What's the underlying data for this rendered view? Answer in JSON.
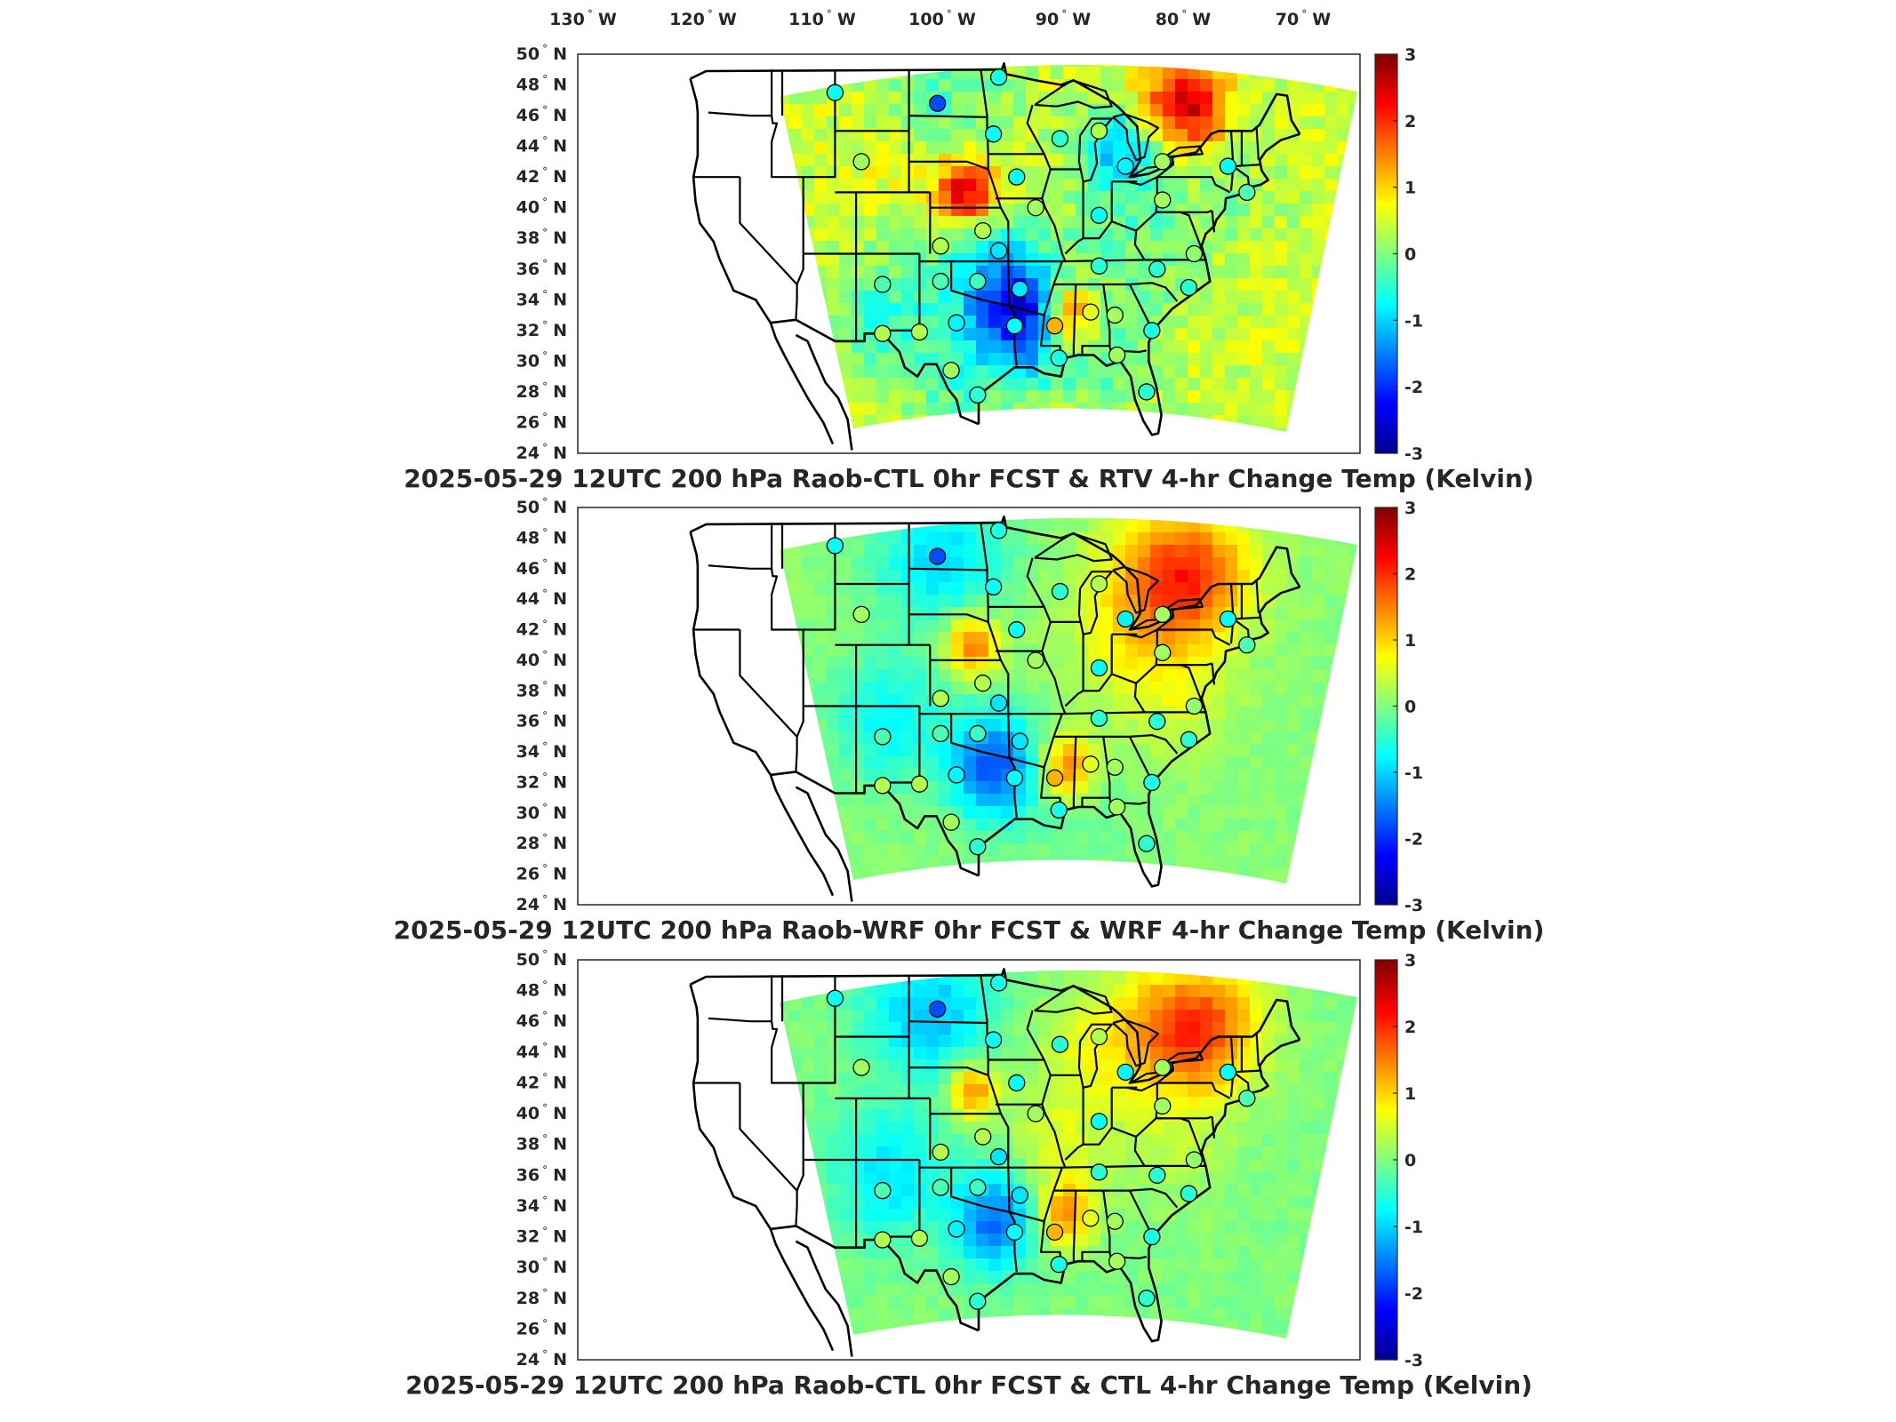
{
  "longitude_labels": [
    "130",
    "120",
    "110",
    "100",
    "90",
    "80",
    "70"
  ],
  "longitude_suffix": "W",
  "latitude_labels": [
    "50",
    "48",
    "46",
    "44",
    "42",
    "40",
    "38",
    "36",
    "34",
    "32",
    "30",
    "28",
    "26",
    "24"
  ],
  "latitude_suffix": "N",
  "colorbar": {
    "ticks": [
      "3",
      "2",
      "1",
      "0",
      "-1",
      "-2",
      "-3"
    ],
    "range": [
      -3,
      3
    ],
    "colormap": "jet"
  },
  "colors": {
    "frame": "#262626",
    "state_lines": "#000000",
    "no_data": "#ffffff"
  },
  "panels": [
    {
      "title": "2025-05-29 12UTC 200 hPa Raob-CTL 0hr FCST & RTV 4-hr Change Temp (Kelvin)",
      "anomalies": [
        {
          "lon": -98.5,
          "lat": 41.0,
          "value": 2.2,
          "spread": 1.5
        },
        {
          "lon": -89.0,
          "lat": 33.0,
          "value": 2.0,
          "spread": 1.5
        },
        {
          "lon": -78.0,
          "lat": 46.5,
          "value": 2.2,
          "spread": 2.0
        },
        {
          "lon": -93.0,
          "lat": 32.5,
          "value": -2.2,
          "spread": 2.5
        },
        {
          "lon": -96.0,
          "lat": 35.5,
          "value": -1.4,
          "spread": 3.0
        },
        {
          "lon": -84.0,
          "lat": 44.0,
          "value": -1.5,
          "spread": 2.0
        },
        {
          "lon": -82.0,
          "lat": 38.0,
          "value": -0.6,
          "spread": 3.5
        },
        {
          "lon": -106.0,
          "lat": 33.0,
          "value": -0.9,
          "spread": 3.0
        },
        {
          "lon": -99.0,
          "lat": 28.5,
          "value": -0.8,
          "spread": 2.5
        },
        {
          "lon": -86.0,
          "lat": 30.0,
          "value": -0.6,
          "spread": 3.0
        },
        {
          "lon": -101.0,
          "lat": 47.0,
          "value": -0.8,
          "spread": 3.0
        },
        {
          "lon": -104.0,
          "lat": 44.0,
          "value": 0.3,
          "spread": 3.0
        },
        {
          "lon": -73.0,
          "lat": 42.0,
          "value": -0.3,
          "spread": 3.0
        }
      ],
      "base_value": 0.45,
      "noise_amplitude": 0.35,
      "stations": [
        {
          "lon": -111.0,
          "lat": 47.5,
          "value": -0.7
        },
        {
          "lon": -101.3,
          "lat": 46.8,
          "value": -1.8
        },
        {
          "lon": -95.5,
          "lat": 48.5,
          "value": -0.6
        },
        {
          "lon": -108.5,
          "lat": 43.0,
          "value": 0.2
        },
        {
          "lon": -96.0,
          "lat": 44.8,
          "value": -0.7
        },
        {
          "lon": -93.8,
          "lat": 42.0,
          "value": -0.7
        },
        {
          "lon": -89.7,
          "lat": 44.5,
          "value": -0.5
        },
        {
          "lon": -86.0,
          "lat": 45.0,
          "value": 0.3
        },
        {
          "lon": -83.5,
          "lat": 42.7,
          "value": -0.8
        },
        {
          "lon": -80.0,
          "lat": 43.0,
          "value": 0.2
        },
        {
          "lon": -73.8,
          "lat": 42.7,
          "value": -0.7
        },
        {
          "lon": -72.0,
          "lat": 41.0,
          "value": -0.3
        },
        {
          "lon": -92.0,
          "lat": 40.0,
          "value": 0.2
        },
        {
          "lon": -86.0,
          "lat": 39.5,
          "value": -0.7
        },
        {
          "lon": -80.0,
          "lat": 40.5,
          "value": 0.2
        },
        {
          "lon": -97.0,
          "lat": 38.5,
          "value": 0.3
        },
        {
          "lon": -101.0,
          "lat": 37.5,
          "value": 0.3
        },
        {
          "lon": -95.5,
          "lat": 37.2,
          "value": -0.9
        },
        {
          "lon": -86.0,
          "lat": 36.2,
          "value": -0.5
        },
        {
          "lon": -80.5,
          "lat": 36.0,
          "value": -0.5
        },
        {
          "lon": -77.0,
          "lat": 37.0,
          "value": 0.1
        },
        {
          "lon": -106.5,
          "lat": 35.0,
          "value": -0.3
        },
        {
          "lon": -101.0,
          "lat": 35.2,
          "value": -0.3
        },
        {
          "lon": -97.5,
          "lat": 35.2,
          "value": -0.4
        },
        {
          "lon": -93.5,
          "lat": 34.7,
          "value": -0.9
        },
        {
          "lon": -99.5,
          "lat": 32.5,
          "value": -0.8
        },
        {
          "lon": -94.0,
          "lat": 32.3,
          "value": -0.7
        },
        {
          "lon": -90.2,
          "lat": 32.3,
          "value": 1.2
        },
        {
          "lon": -86.8,
          "lat": 33.2,
          "value": 0.6
        },
        {
          "lon": -84.5,
          "lat": 33.0,
          "value": 0.2
        },
        {
          "lon": -81.0,
          "lat": 32.0,
          "value": -0.6
        },
        {
          "lon": -77.5,
          "lat": 34.8,
          "value": -0.5
        },
        {
          "lon": -106.5,
          "lat": 31.8,
          "value": 0.3
        },
        {
          "lon": -103.0,
          "lat": 31.9,
          "value": 0.3
        },
        {
          "lon": -100.0,
          "lat": 29.4,
          "value": 0.2
        },
        {
          "lon": -97.5,
          "lat": 27.8,
          "value": -0.5
        },
        {
          "lon": -89.8,
          "lat": 30.2,
          "value": -0.6
        },
        {
          "lon": -84.3,
          "lat": 30.4,
          "value": 0.2
        },
        {
          "lon": -81.5,
          "lat": 28.0,
          "value": -0.5
        }
      ]
    },
    {
      "title": "2025-05-29 12UTC 200 hPa Raob-WRF 0hr FCST & WRF 4-hr Change Temp (Kelvin)",
      "anomalies": [
        {
          "lon": -98.0,
          "lat": 41.0,
          "value": 1.6,
          "spread": 1.4
        },
        {
          "lon": -89.0,
          "lat": 33.0,
          "value": 1.6,
          "spread": 1.5
        },
        {
          "lon": -78.0,
          "lat": 45.5,
          "value": 2.0,
          "spread": 3.0
        },
        {
          "lon": -96.0,
          "lat": 33.0,
          "value": -1.8,
          "spread": 2.5
        },
        {
          "lon": -106.0,
          "lat": 36.0,
          "value": -0.8,
          "spread": 3.0
        },
        {
          "lon": -101.0,
          "lat": 46.5,
          "value": -1.0,
          "spread": 3.0
        },
        {
          "lon": -84.0,
          "lat": 42.0,
          "value": 0.5,
          "spread": 3.0
        },
        {
          "lon": -79.0,
          "lat": 38.0,
          "value": 0.5,
          "spread": 3.0
        },
        {
          "lon": -88.0,
          "lat": 30.0,
          "value": -0.2,
          "spread": 3.0
        }
      ],
      "base_value": 0.05,
      "noise_amplitude": 0.12,
      "stations": [
        {
          "lon": -111.0,
          "lat": 47.5,
          "value": -0.7
        },
        {
          "lon": -101.3,
          "lat": 46.8,
          "value": -1.8
        },
        {
          "lon": -95.5,
          "lat": 48.5,
          "value": -0.6
        },
        {
          "lon": -108.5,
          "lat": 43.0,
          "value": 0.2
        },
        {
          "lon": -96.0,
          "lat": 44.8,
          "value": -0.7
        },
        {
          "lon": -93.8,
          "lat": 42.0,
          "value": -0.7
        },
        {
          "lon": -89.7,
          "lat": 44.5,
          "value": -0.5
        },
        {
          "lon": -86.0,
          "lat": 45.0,
          "value": 0.3
        },
        {
          "lon": -83.5,
          "lat": 42.7,
          "value": -0.8
        },
        {
          "lon": -80.0,
          "lat": 43.0,
          "value": 0.2
        },
        {
          "lon": -73.8,
          "lat": 42.7,
          "value": -0.7
        },
        {
          "lon": -72.0,
          "lat": 41.0,
          "value": -0.3
        },
        {
          "lon": -92.0,
          "lat": 40.0,
          "value": 0.2
        },
        {
          "lon": -86.0,
          "lat": 39.5,
          "value": -0.7
        },
        {
          "lon": -80.0,
          "lat": 40.5,
          "value": 0.2
        },
        {
          "lon": -97.0,
          "lat": 38.5,
          "value": 0.3
        },
        {
          "lon": -101.0,
          "lat": 37.5,
          "value": 0.3
        },
        {
          "lon": -95.5,
          "lat": 37.2,
          "value": -0.9
        },
        {
          "lon": -86.0,
          "lat": 36.2,
          "value": -0.5
        },
        {
          "lon": -80.5,
          "lat": 36.0,
          "value": -0.5
        },
        {
          "lon": -77.0,
          "lat": 37.0,
          "value": 0.1
        },
        {
          "lon": -106.5,
          "lat": 35.0,
          "value": -0.3
        },
        {
          "lon": -101.0,
          "lat": 35.2,
          "value": -0.3
        },
        {
          "lon": -97.5,
          "lat": 35.2,
          "value": -0.4
        },
        {
          "lon": -93.5,
          "lat": 34.7,
          "value": -0.9
        },
        {
          "lon": -99.5,
          "lat": 32.5,
          "value": -0.8
        },
        {
          "lon": -94.0,
          "lat": 32.3,
          "value": -0.7
        },
        {
          "lon": -90.2,
          "lat": 32.3,
          "value": 1.2
        },
        {
          "lon": -86.8,
          "lat": 33.2,
          "value": 0.6
        },
        {
          "lon": -84.5,
          "lat": 33.0,
          "value": 0.2
        },
        {
          "lon": -81.0,
          "lat": 32.0,
          "value": -0.6
        },
        {
          "lon": -77.5,
          "lat": 34.8,
          "value": -0.5
        },
        {
          "lon": -106.5,
          "lat": 31.8,
          "value": 0.3
        },
        {
          "lon": -103.0,
          "lat": 31.9,
          "value": 0.3
        },
        {
          "lon": -100.0,
          "lat": 29.4,
          "value": 0.2
        },
        {
          "lon": -97.5,
          "lat": 27.8,
          "value": -0.5
        },
        {
          "lon": -89.8,
          "lat": 30.2,
          "value": -0.6
        },
        {
          "lon": -84.3,
          "lat": 30.4,
          "value": 0.2
        },
        {
          "lon": -81.5,
          "lat": 28.0,
          "value": -0.5
        }
      ]
    },
    {
      "title": "2025-05-29 12UTC 200 hPa Raob-CTL 0hr FCST & CTL 4-hr Change Temp (Kelvin)",
      "anomalies": [
        {
          "lon": -98.0,
          "lat": 41.5,
          "value": 1.6,
          "spread": 1.2
        },
        {
          "lon": -89.0,
          "lat": 33.5,
          "value": 1.4,
          "spread": 1.5
        },
        {
          "lon": -77.0,
          "lat": 45.5,
          "value": 2.0,
          "spread": 3.0
        },
        {
          "lon": -96.0,
          "lat": 33.0,
          "value": -1.6,
          "spread": 2.3
        },
        {
          "lon": -106.0,
          "lat": 36.0,
          "value": -0.9,
          "spread": 3.0
        },
        {
          "lon": -102.0,
          "lat": 46.5,
          "value": -1.1,
          "spread": 3.0
        },
        {
          "lon": -86.0,
          "lat": 44.0,
          "value": 0.6,
          "spread": 3.0
        },
        {
          "lon": -79.0,
          "lat": 38.0,
          "value": 0.3,
          "spread": 3.0
        },
        {
          "lon": -90.0,
          "lat": 38.0,
          "value": 0.5,
          "spread": 2.5
        }
      ],
      "base_value": 0.0,
      "noise_amplitude": 0.12,
      "stations": [
        {
          "lon": -111.0,
          "lat": 47.5,
          "value": -0.7
        },
        {
          "lon": -101.3,
          "lat": 46.8,
          "value": -1.8
        },
        {
          "lon": -95.5,
          "lat": 48.5,
          "value": -0.6
        },
        {
          "lon": -108.5,
          "lat": 43.0,
          "value": 0.2
        },
        {
          "lon": -96.0,
          "lat": 44.8,
          "value": -0.7
        },
        {
          "lon": -93.8,
          "lat": 42.0,
          "value": -0.7
        },
        {
          "lon": -89.7,
          "lat": 44.5,
          "value": -0.5
        },
        {
          "lon": -86.0,
          "lat": 45.0,
          "value": 0.3
        },
        {
          "lon": -83.5,
          "lat": 42.7,
          "value": -0.8
        },
        {
          "lon": -80.0,
          "lat": 43.0,
          "value": 0.2
        },
        {
          "lon": -73.8,
          "lat": 42.7,
          "value": -0.7
        },
        {
          "lon": -72.0,
          "lat": 41.0,
          "value": -0.3
        },
        {
          "lon": -92.0,
          "lat": 40.0,
          "value": 0.2
        },
        {
          "lon": -86.0,
          "lat": 39.5,
          "value": -0.7
        },
        {
          "lon": -80.0,
          "lat": 40.5,
          "value": 0.2
        },
        {
          "lon": -97.0,
          "lat": 38.5,
          "value": 0.3
        },
        {
          "lon": -101.0,
          "lat": 37.5,
          "value": 0.3
        },
        {
          "lon": -95.5,
          "lat": 37.2,
          "value": -0.9
        },
        {
          "lon": -86.0,
          "lat": 36.2,
          "value": -0.5
        },
        {
          "lon": -80.5,
          "lat": 36.0,
          "value": -0.5
        },
        {
          "lon": -77.0,
          "lat": 37.0,
          "value": 0.1
        },
        {
          "lon": -106.5,
          "lat": 35.0,
          "value": -0.3
        },
        {
          "lon": -101.0,
          "lat": 35.2,
          "value": -0.3
        },
        {
          "lon": -97.5,
          "lat": 35.2,
          "value": -0.4
        },
        {
          "lon": -93.5,
          "lat": 34.7,
          "value": -0.9
        },
        {
          "lon": -99.5,
          "lat": 32.5,
          "value": -0.8
        },
        {
          "lon": -94.0,
          "lat": 32.3,
          "value": -0.7
        },
        {
          "lon": -90.2,
          "lat": 32.3,
          "value": 1.2
        },
        {
          "lon": -86.8,
          "lat": 33.2,
          "value": 0.6
        },
        {
          "lon": -84.5,
          "lat": 33.0,
          "value": 0.2
        },
        {
          "lon": -81.0,
          "lat": 32.0,
          "value": -0.6
        },
        {
          "lon": -77.5,
          "lat": 34.8,
          "value": -0.5
        },
        {
          "lon": -106.5,
          "lat": 31.8,
          "value": 0.3
        },
        {
          "lon": -103.0,
          "lat": 31.9,
          "value": 0.3
        },
        {
          "lon": -100.0,
          "lat": 29.4,
          "value": 0.2
        },
        {
          "lon": -97.5,
          "lat": 27.8,
          "value": -0.5
        },
        {
          "lon": -89.8,
          "lat": 30.2,
          "value": -0.6
        },
        {
          "lon": -84.3,
          "lat": 30.4,
          "value": 0.2
        },
        {
          "lon": -81.5,
          "lat": 28.0,
          "value": -0.5
        }
      ]
    }
  ]
}
